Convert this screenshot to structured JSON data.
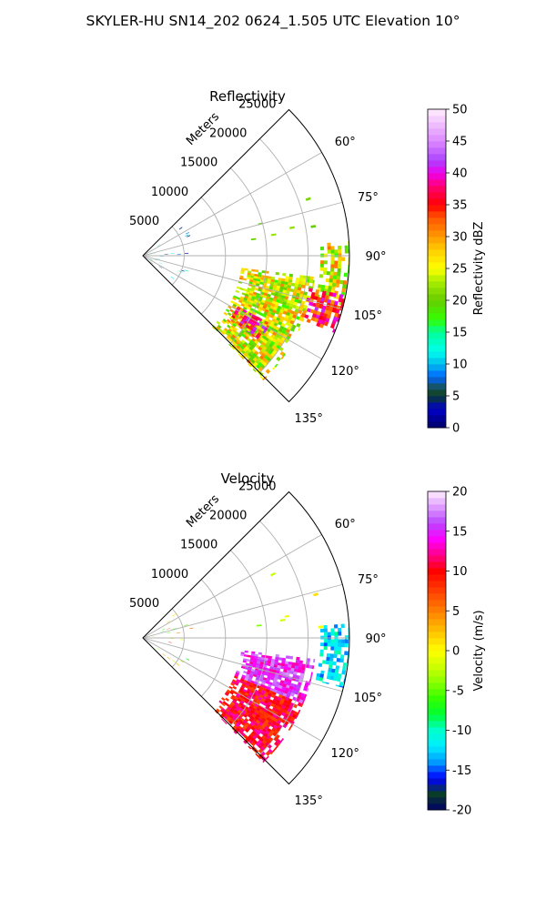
{
  "figure": {
    "title": "SKYLER-HU  SN14_202  0624_1.505 UTC Elevation 10°"
  },
  "chart_data": [
    {
      "type": "heatmap",
      "projection": "polar-sector",
      "title": "Reflectivity",
      "radial_label": "Meters",
      "azimuth_range_deg": [
        45,
        135
      ],
      "range_max": 25000,
      "radial_ticks": [
        5000,
        10000,
        15000,
        20000,
        25000
      ],
      "angle_ticks": [
        60,
        75,
        90,
        105,
        120,
        135
      ],
      "angle_tick_labels": [
        "60°",
        "75°",
        "90°",
        "105°",
        "120°",
        "135°"
      ],
      "grid": true,
      "colorbar": {
        "label": "Reflectivity dBZ",
        "vmin": 0,
        "vmax": 50,
        "ticks": [
          0,
          5,
          10,
          15,
          20,
          25,
          30,
          35,
          40,
          45,
          50
        ],
        "colormap": "NWSRef",
        "stops": [
          [
            0,
            "#000066"
          ],
          [
            3,
            "#0000cc"
          ],
          [
            5,
            "#0a3c2a"
          ],
          [
            6,
            "#1a4f3a"
          ],
          [
            8,
            "#0066ff"
          ],
          [
            10,
            "#00bbee"
          ],
          [
            12,
            "#00ffee"
          ],
          [
            15,
            "#00ff99"
          ],
          [
            17,
            "#33ff00"
          ],
          [
            20,
            "#66cc00"
          ],
          [
            23,
            "#aaee00"
          ],
          [
            25,
            "#ffff00"
          ],
          [
            28,
            "#ffcc00"
          ],
          [
            30,
            "#ff9900"
          ],
          [
            33,
            "#ff5500"
          ],
          [
            35,
            "#ff0000"
          ],
          [
            38,
            "#ff0077"
          ],
          [
            40,
            "#ee00ee"
          ],
          [
            42,
            "#aa44ff"
          ],
          [
            45,
            "#dd88ff"
          ],
          [
            50,
            "#ffeeff"
          ]
        ]
      },
      "echo_regions": [
        {
          "az": [
            97,
            136
          ],
          "r": [
            12000,
            21000
          ],
          "level": "medium"
        },
        {
          "az": [
            86,
            104
          ],
          "r": [
            21500,
            25000
          ],
          "level": "medium"
        },
        {
          "az": [
            101,
            112
          ],
          "r": [
            20500,
            25000
          ],
          "level": "high"
        },
        {
          "az": [
            118,
            126
          ],
          "r": [
            13000,
            17500
          ],
          "level": "high"
        }
      ]
    },
    {
      "type": "heatmap",
      "projection": "polar-sector",
      "title": "Velocity",
      "radial_label": "Meters",
      "azimuth_range_deg": [
        45,
        135
      ],
      "range_max": 25000,
      "radial_ticks": [
        5000,
        10000,
        15000,
        20000,
        25000
      ],
      "angle_ticks": [
        60,
        75,
        90,
        105,
        120,
        135
      ],
      "angle_tick_labels": [
        "60°",
        "75°",
        "90°",
        "105°",
        "120°",
        "135°"
      ],
      "grid": true,
      "colorbar": {
        "label": "Velocity (m/s)",
        "vmin": -20,
        "vmax": 20,
        "ticks": [
          -20,
          -15,
          -10,
          -5,
          0,
          5,
          10,
          15,
          20
        ],
        "colormap": "NWSVel",
        "stops": [
          [
            -20,
            "#000066"
          ],
          [
            -18,
            "#0a3c2a"
          ],
          [
            -16,
            "#0000ff"
          ],
          [
            -14,
            "#0099ff"
          ],
          [
            -12,
            "#00eeff"
          ],
          [
            -10,
            "#00ffcc"
          ],
          [
            -8,
            "#00ff33"
          ],
          [
            -6,
            "#33ff00"
          ],
          [
            -4,
            "#88ff00"
          ],
          [
            -2,
            "#ccff00"
          ],
          [
            0,
            "#ffff00"
          ],
          [
            2,
            "#ffcc00"
          ],
          [
            4,
            "#ff9900"
          ],
          [
            6,
            "#ff6600"
          ],
          [
            8,
            "#ff3300"
          ],
          [
            10,
            "#ff0000"
          ],
          [
            12,
            "#ff0088"
          ],
          [
            14,
            "#ff00ff"
          ],
          [
            16,
            "#bb44ff"
          ],
          [
            18,
            "#dd99ff"
          ],
          [
            20,
            "#ffeeff"
          ]
        ]
      },
      "echo_regions": [
        {
          "az": [
            97,
            136
          ],
          "r": [
            12000,
            21000
          ],
          "level": "mixed"
        },
        {
          "az": [
            86,
            104
          ],
          "r": [
            21500,
            25000
          ],
          "level": "inbound"
        }
      ]
    }
  ]
}
